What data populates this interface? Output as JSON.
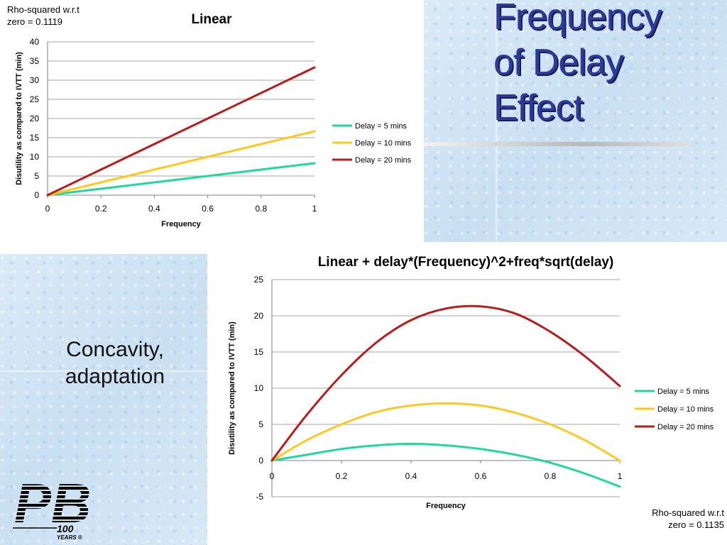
{
  "slide": {
    "title": "Frequency\nof Delay\nEffect",
    "caption": "Concavity,\nadaptation",
    "logo_text": "PB",
    "logo_years": "100",
    "logo_years_sub": "YEARS ®"
  },
  "annotations": {
    "rho_top": "Rho-squared w.r.t\nzero = 0.1119",
    "rho_bottom": "Rho-squared w.r.t\nzero = 0.1135"
  },
  "colors": {
    "delay5": "#1ed99b",
    "delay10": "#ffc81e",
    "delay20": "#b81c1c",
    "grid": "#a6a6a6",
    "title_blue": "#2e3a9b"
  },
  "chart_data": [
    {
      "type": "line",
      "title": "Linear",
      "xlabel": "Frequency",
      "ylabel": "Disutility as compared to IVTT (min)",
      "xlim": [
        0,
        1
      ],
      "ylim": [
        0,
        40
      ],
      "xticks": [
        0,
        0.2,
        0.4,
        0.6,
        0.8,
        1
      ],
      "yticks": [
        0,
        5,
        10,
        15,
        20,
        25,
        30,
        35,
        40
      ],
      "grid": true,
      "legend": "right",
      "series": [
        {
          "name": "Delay = 5 mins",
          "color": "#1ed99b",
          "x": [
            0,
            0.2,
            0.4,
            0.6,
            0.8,
            1
          ],
          "y": [
            0,
            1.67,
            3.33,
            5.0,
            6.67,
            8.33
          ]
        },
        {
          "name": "Delay = 10 mins",
          "color": "#ffc81e",
          "x": [
            0,
            0.2,
            0.4,
            0.6,
            0.8,
            1
          ],
          "y": [
            0,
            3.33,
            6.67,
            10.0,
            13.33,
            16.67
          ]
        },
        {
          "name": "Delay = 20 mins",
          "color": "#b81c1c",
          "x": [
            0,
            0.2,
            0.4,
            0.6,
            0.8,
            1
          ],
          "y": [
            0,
            6.67,
            13.33,
            20.0,
            26.67,
            33.33
          ]
        }
      ]
    },
    {
      "type": "line",
      "title": "Linear + delay*(Frequency)^2+freq*sqrt(delay)",
      "xlabel": "Frequency",
      "ylabel": "Disutility as compared to IVTT (min)",
      "xlim": [
        0,
        1
      ],
      "ylim": [
        -5,
        25
      ],
      "xticks": [
        0,
        0.2,
        0.4,
        0.6,
        0.8,
        1
      ],
      "yticks": [
        -5,
        0,
        5,
        10,
        15,
        20,
        25
      ],
      "grid": true,
      "legend": "right",
      "series": [
        {
          "name": "Delay = 5 mins",
          "color": "#1ed99b",
          "x": [
            0,
            0.1,
            0.2,
            0.3,
            0.4,
            0.5,
            0.6,
            0.7,
            0.8,
            0.9,
            1
          ],
          "y": [
            0,
            0.8,
            1.6,
            2.1,
            2.3,
            2.1,
            1.6,
            0.8,
            -0.3,
            -1.8,
            -3.6
          ]
        },
        {
          "name": "Delay = 10 mins",
          "color": "#ffc81e",
          "x": [
            0,
            0.1,
            0.2,
            0.3,
            0.4,
            0.5,
            0.6,
            0.7,
            0.8,
            0.9,
            1
          ],
          "y": [
            0,
            2.8,
            5.0,
            6.7,
            7.6,
            7.9,
            7.6,
            6.6,
            5.0,
            2.8,
            0
          ]
        },
        {
          "name": "Delay = 20 mins",
          "color": "#b81c1c",
          "x": [
            0,
            0.1,
            0.2,
            0.3,
            0.4,
            0.5,
            0.6,
            0.7,
            0.8,
            0.9,
            1
          ],
          "y": [
            0,
            6.3,
            11.8,
            16.3,
            19.4,
            21.0,
            21.3,
            20.3,
            17.8,
            14.4,
            10.3
          ]
        }
      ]
    }
  ]
}
